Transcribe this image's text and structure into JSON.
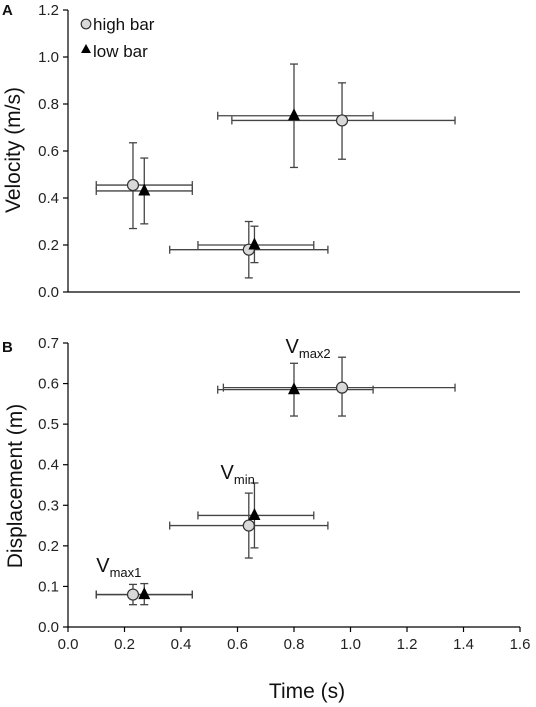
{
  "chart_data": [
    {
      "panel": "A",
      "type": "scatter",
      "xlabel": "",
      "ylabel": "Velocity (m/s)",
      "xlim": [
        0,
        1.6
      ],
      "ylim": [
        0,
        1.2
      ],
      "yticks": [
        "0.0",
        "0.2",
        "0.4",
        "0.6",
        "0.8",
        "1.0",
        "1.2"
      ],
      "legend": {
        "placement": "top-left",
        "entries": [
          {
            "label": "high bar",
            "marker": "circle"
          },
          {
            "label": "low bar",
            "marker": "triangle"
          }
        ]
      },
      "series": [
        {
          "name": "high bar",
          "marker": "circle",
          "color": "#d9d9d9",
          "points": [
            {
              "x": 0.23,
              "y": 0.455,
              "x_err": [
                0.1,
                0.44
              ],
              "y_err": [
                0.27,
                0.635
              ]
            },
            {
              "x": 0.64,
              "y": 0.18,
              "x_err": [
                0.36,
                0.92
              ],
              "y_err": [
                0.06,
                0.3
              ]
            },
            {
              "x": 0.97,
              "y": 0.73,
              "x_err": [
                0.58,
                1.37
              ],
              "y_err": [
                0.565,
                0.89
              ]
            }
          ]
        },
        {
          "name": "low bar",
          "marker": "triangle",
          "color": "#000000",
          "points": [
            {
              "x": 0.27,
              "y": 0.43,
              "x_err": [
                0.1,
                0.44
              ],
              "y_err": [
                0.29,
                0.57
              ]
            },
            {
              "x": 0.66,
              "y": 0.2,
              "x_err": [
                0.46,
                0.87
              ],
              "y_err": [
                0.125,
                0.28
              ]
            },
            {
              "x": 0.8,
              "y": 0.75,
              "x_err": [
                0.53,
                1.08
              ],
              "y_err": [
                0.53,
                0.97
              ]
            }
          ]
        }
      ]
    },
    {
      "panel": "B",
      "type": "scatter",
      "xlabel": "Time (s)",
      "ylabel": "Displacement (m)",
      "xlim": [
        0,
        1.6
      ],
      "ylim": [
        0,
        0.7
      ],
      "xticks": [
        "0.0",
        "0.2",
        "0.4",
        "0.6",
        "0.8",
        "1.0",
        "1.2",
        "1.4",
        "1.6"
      ],
      "yticks": [
        "0.0",
        "0.1",
        "0.2",
        "0.3",
        "0.4",
        "0.5",
        "0.6",
        "0.7"
      ],
      "annotations": [
        {
          "main": "V",
          "sub": "max1",
          "x": 0.1,
          "y": 0.135
        },
        {
          "main": "V",
          "sub": "min",
          "x": 0.54,
          "y": 0.365
        },
        {
          "main": "V",
          "sub": "max2",
          "x": 0.77,
          "y": 0.675
        }
      ],
      "series": [
        {
          "name": "high bar",
          "marker": "circle",
          "color": "#d9d9d9",
          "points": [
            {
              "x": 0.23,
              "y": 0.08,
              "x_err": [
                0.1,
                0.44
              ],
              "y_err": [
                0.055,
                0.105
              ]
            },
            {
              "x": 0.64,
              "y": 0.25,
              "x_err": [
                0.36,
                0.92
              ],
              "y_err": [
                0.17,
                0.33
              ]
            },
            {
              "x": 0.97,
              "y": 0.59,
              "x_err": [
                0.55,
                1.37
              ],
              "y_err": [
                0.52,
                0.665
              ]
            }
          ]
        },
        {
          "name": "low bar",
          "marker": "triangle",
          "color": "#000000",
          "points": [
            {
              "x": 0.27,
              "y": 0.08,
              "x_err": [
                0.1,
                0.44
              ],
              "y_err": [
                0.055,
                0.107
              ]
            },
            {
              "x": 0.66,
              "y": 0.275,
              "x_err": [
                0.46,
                0.87
              ],
              "y_err": [
                0.195,
                0.355
              ]
            },
            {
              "x": 0.8,
              "y": 0.585,
              "x_err": [
                0.53,
                1.08
              ],
              "y_err": [
                0.52,
                0.65
              ]
            }
          ]
        }
      ]
    }
  ]
}
